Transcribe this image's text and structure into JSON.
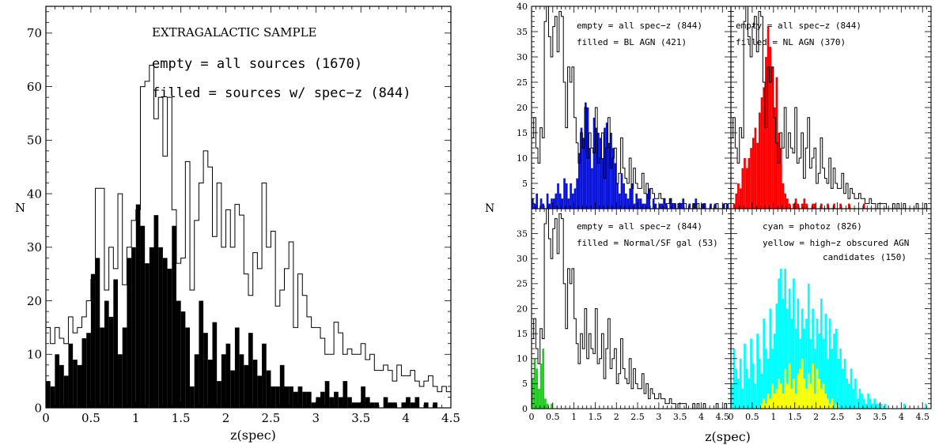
{
  "figure": {
    "left_title": "EXTRAGALACTIC SAMPLE",
    "left_ann_1": "empty = all sources (1670)",
    "left_ann_2": "filled = sources w/ spec−z (844)",
    "left_ylabel": "N",
    "left_xlabel": "z(spec)",
    "right_ylabel": "N",
    "right_xlabel": "z(spec)"
  },
  "panels": [
    {
      "ann_1": "empty = all spec−z (844)",
      "ann_2": "filled = BL AGN (421)",
      "fill_color": "#0a14d8"
    },
    {
      "ann_1": "empty = all spec−z (844)",
      "ann_2": "filled = NL AGN (370)",
      "fill_color": "#ff0000"
    },
    {
      "ann_1": "empty = all spec−z (844)",
      "ann_2": "filled =  Normal/SF gal  (53)",
      "fill_color": "#22cc22"
    },
    {
      "ann_1": "cyan = photoz  (826)",
      "ann_2": "yellow = high−z obscured AGN",
      "ann_3": "candidates (150)",
      "fill_color": "#00ffff",
      "fill2_color": "#ffff00"
    }
  ],
  "chart_data": [
    {
      "type": "bar",
      "title": "EXTRAGALACTIC SAMPLE",
      "xlabel": "z(spec)",
      "ylabel": "N",
      "xlim": [
        0,
        4.5
      ],
      "ylim": [
        0,
        75
      ],
      "x_ticks": [
        "0",
        "0.5",
        "1",
        "1.5",
        "2",
        "2.5",
        "3",
        "3.5",
        "4",
        "4.5"
      ],
      "y_ticks": [
        "0",
        "10",
        "20",
        "30",
        "40",
        "50",
        "60",
        "70"
      ],
      "bin_width": 0.05,
      "series": [
        {
          "name": "all sources (1670)",
          "style": "empty",
          "values": [
            15,
            12,
            15,
            13,
            12,
            17,
            14,
            15,
            17,
            20,
            24,
            41,
            41,
            22,
            30,
            26,
            40,
            23,
            30,
            35,
            37,
            60,
            61,
            64,
            54,
            58,
            47,
            58,
            37,
            27,
            28,
            46,
            22,
            35,
            42,
            48,
            45,
            32,
            42,
            30,
            37,
            30,
            38,
            36,
            25,
            21,
            29,
            26,
            42,
            30,
            33,
            19,
            22,
            26,
            31,
            15,
            25,
            21,
            17,
            15,
            15,
            13,
            10,
            10,
            16,
            14,
            10,
            11,
            10,
            10,
            12,
            9,
            10,
            7,
            7,
            8,
            7,
            5,
            8,
            6,
            6,
            7,
            5,
            4,
            5,
            6,
            4,
            3,
            4,
            3,
            3,
            2,
            2,
            1,
            0,
            1,
            0,
            1,
            0,
            0
          ]
        },
        {
          "name": "sources w/ spec-z (844)",
          "style": "filled",
          "color": "#000000",
          "values": [
            5,
            4,
            10,
            8,
            6,
            12,
            9,
            8,
            13,
            14,
            25,
            28,
            15,
            20,
            17,
            24,
            10,
            15,
            28,
            30,
            38,
            34,
            27,
            30,
            36,
            30,
            28,
            26,
            34,
            20,
            18,
            15,
            4,
            10,
            20,
            14,
            9,
            16,
            5,
            10,
            12,
            7,
            15,
            10,
            8,
            14,
            9,
            6,
            12,
            7,
            4,
            4,
            8,
            4,
            4,
            3,
            4,
            3,
            3,
            1,
            2,
            3,
            5,
            2,
            3,
            2,
            5,
            2,
            1,
            1,
            4,
            2,
            1,
            1,
            0,
            2,
            1,
            1,
            0,
            1,
            2,
            1,
            2,
            0,
            1,
            0,
            1,
            0,
            0,
            0,
            0,
            0,
            0,
            0,
            1,
            0,
            0,
            1,
            0,
            0
          ]
        }
      ]
    },
    {
      "type": "bar",
      "xlim": [
        0,
        4.7
      ],
      "ylim": [
        0,
        40
      ],
      "bin_width": 0.05,
      "y_ticks": [
        "5",
        "10",
        "15",
        "20",
        "25",
        "30",
        "35",
        "40"
      ],
      "series": [
        {
          "name": "all spec-z (844)",
          "style": "empty",
          "values": [
            14,
            18,
            12,
            9,
            16,
            14,
            37,
            40,
            34,
            30,
            36,
            38,
            31,
            39,
            38,
            25,
            16,
            28,
            25,
            28,
            18,
            13,
            9,
            15,
            12,
            20,
            10,
            15,
            12,
            11,
            20,
            9,
            10,
            15,
            6,
            12,
            18,
            8,
            10,
            12,
            5,
            7,
            14,
            8,
            6,
            5,
            10,
            4,
            8,
            5,
            4,
            4,
            7,
            3,
            5,
            2,
            4,
            3,
            2,
            2,
            3,
            2,
            2,
            1,
            1,
            2,
            1,
            1,
            0,
            1,
            1,
            1,
            1,
            0,
            0,
            0,
            1,
            0,
            1,
            0,
            0,
            1,
            0,
            0,
            0,
            0,
            0,
            1,
            0,
            0,
            0,
            1,
            0,
            0
          ]
        },
        {
          "name": "BL AGN (421)",
          "style": "filled",
          "color": "#0a14d8",
          "values": [
            2,
            1,
            3,
            0,
            2,
            1,
            0,
            3,
            1,
            2,
            2,
            3,
            5,
            3,
            2,
            6,
            5,
            2,
            5,
            3,
            4,
            6,
            11,
            16,
            14,
            21,
            20,
            12,
            8,
            18,
            16,
            15,
            14,
            10,
            16,
            17,
            13,
            15,
            12,
            9,
            5,
            3,
            7,
            5,
            3,
            2,
            4,
            5,
            1,
            3,
            2,
            2,
            1,
            1,
            3,
            4,
            0,
            2,
            1,
            0,
            1,
            1,
            2,
            1,
            0,
            2,
            1,
            1,
            0,
            1,
            1,
            2,
            0,
            0,
            1,
            0,
            1,
            2,
            0,
            0,
            1,
            1,
            0,
            0,
            1,
            0,
            1,
            0,
            0,
            0,
            1,
            0,
            1,
            0
          ]
        }
      ]
    },
    {
      "type": "bar",
      "xlim": [
        0,
        4.7
      ],
      "ylim": [
        0,
        40
      ],
      "bin_width": 0.05,
      "y_ticks": [
        "5",
        "10",
        "15",
        "20",
        "25",
        "30",
        "35",
        "40"
      ],
      "series": [
        {
          "name": "all spec-z (844)",
          "style": "empty",
          "values": [
            14,
            18,
            12,
            9,
            16,
            14,
            37,
            40,
            34,
            30,
            36,
            38,
            31,
            39,
            38,
            25,
            16,
            28,
            25,
            28,
            18,
            13,
            9,
            15,
            12,
            20,
            10,
            15,
            12,
            11,
            20,
            9,
            10,
            15,
            6,
            12,
            18,
            8,
            10,
            12,
            5,
            7,
            14,
            8,
            6,
            5,
            10,
            4,
            8,
            5,
            4,
            4,
            7,
            3,
            5,
            2,
            4,
            3,
            2,
            2,
            3,
            2,
            2,
            1,
            1,
            2,
            1,
            1,
            0,
            1,
            1,
            1,
            1,
            0,
            0,
            0,
            1,
            0,
            1,
            0,
            0,
            1,
            0,
            0,
            0,
            0,
            0,
            1,
            0,
            0,
            0,
            1,
            0,
            0
          ]
        },
        {
          "name": "NL AGN (370)",
          "style": "filled",
          "color": "#ff0000",
          "values": [
            0,
            1,
            3,
            5,
            4,
            8,
            10,
            8,
            10,
            12,
            14,
            16,
            13,
            19,
            22,
            24,
            30,
            36,
            32,
            28,
            20,
            26,
            15,
            12,
            5,
            3,
            2,
            1,
            0,
            1,
            2,
            1,
            0,
            1,
            2,
            1,
            0,
            0,
            1,
            1,
            0,
            0,
            1,
            0,
            0,
            1,
            0,
            0,
            1,
            0,
            0,
            1,
            0,
            0,
            0,
            1,
            0,
            0,
            0,
            0,
            0,
            0,
            1,
            0,
            0,
            0,
            0,
            0,
            0,
            0,
            0,
            0,
            0,
            0,
            0,
            0,
            0,
            0,
            0,
            0,
            0,
            0,
            0,
            0,
            0,
            0,
            0,
            0,
            0,
            0,
            0,
            0,
            0,
            0
          ]
        }
      ]
    },
    {
      "type": "bar",
      "xlim": [
        0,
        4.7
      ],
      "ylim": [
        0,
        40
      ],
      "bin_width": 0.05,
      "y_ticks": [
        "0",
        "5",
        "10",
        "15",
        "20",
        "25",
        "30",
        "35"
      ],
      "x_ticks": [
        "0",
        "0.5",
        "1",
        "1.5",
        "2",
        "2.5",
        "3",
        "3.5",
        "4",
        "4.5"
      ],
      "series": [
        {
          "name": "all spec-z (844)",
          "style": "empty",
          "values": [
            14,
            18,
            12,
            9,
            16,
            14,
            37,
            40,
            34,
            30,
            36,
            38,
            31,
            39,
            38,
            25,
            16,
            28,
            25,
            28,
            18,
            13,
            9,
            15,
            12,
            20,
            10,
            15,
            12,
            11,
            20,
            9,
            10,
            15,
            6,
            12,
            18,
            8,
            10,
            12,
            5,
            7,
            14,
            8,
            6,
            5,
            10,
            4,
            8,
            5,
            4,
            4,
            7,
            3,
            5,
            2,
            4,
            3,
            2,
            2,
            3,
            2,
            2,
            1,
            1,
            2,
            1,
            1,
            0,
            1,
            1,
            1,
            1,
            0,
            0,
            0,
            1,
            0,
            1,
            0,
            0,
            1,
            0,
            0,
            0,
            0,
            0,
            1,
            0,
            0,
            0,
            1,
            0,
            0
          ]
        },
        {
          "name": "Normal/SF gal (53)",
          "style": "filled",
          "color": "#22cc22",
          "values": [
            6,
            10,
            8,
            4,
            9,
            12,
            2,
            1,
            0,
            1
          ]
        }
      ]
    },
    {
      "type": "bar",
      "xlim": [
        0,
        4.7
      ],
      "ylim": [
        0,
        40
      ],
      "bin_width": 0.05,
      "y_ticks": [
        "0",
        "5",
        "10",
        "15",
        "20",
        "25",
        "30",
        "35"
      ],
      "x_ticks": [
        "0",
        "0.5",
        "1",
        "1.5",
        "2",
        "2.5",
        "3",
        "3.5",
        "4",
        "4.5"
      ],
      "series": [
        {
          "name": "photoz (826)",
          "style": "filled",
          "color": "#00ffff",
          "values": [
            5,
            12,
            8,
            6,
            10,
            4,
            13,
            8,
            6,
            14,
            9,
            5,
            15,
            10,
            7,
            18,
            12,
            10,
            20,
            12,
            15,
            21,
            26,
            28,
            22,
            28,
            20,
            24,
            18,
            26,
            16,
            22,
            14,
            20,
            16,
            18,
            25,
            14,
            20,
            12,
            18,
            15,
            22,
            14,
            19,
            10,
            18,
            12,
            15,
            16,
            10,
            12,
            8,
            10,
            6,
            5,
            8,
            4,
            6,
            2,
            4,
            3,
            2,
            1,
            3,
            2,
            1,
            2,
            1,
            1,
            1,
            0,
            1,
            0,
            0,
            0,
            0,
            0,
            0,
            0,
            0,
            1,
            0,
            0,
            0,
            0,
            0,
            0,
            0,
            0,
            0,
            1,
            0,
            0
          ]
        },
        {
          "name": "high-z obscured AGN candidates (150)",
          "style": "filled",
          "color": "#ffff00",
          "values": [
            0,
            0,
            0,
            0,
            0,
            0,
            0,
            0,
            0,
            0,
            0,
            0,
            0,
            0,
            1,
            2,
            1,
            3,
            2,
            5,
            3,
            4,
            6,
            5,
            3,
            8,
            5,
            9,
            4,
            6,
            3,
            7,
            8,
            10,
            6,
            4,
            7,
            5,
            9,
            3,
            8,
            6,
            4,
            5,
            3,
            2,
            1,
            2,
            0,
            1,
            0,
            0,
            0,
            0,
            0,
            0,
            0,
            0,
            0,
            0,
            0,
            0,
            0,
            0,
            0,
            0,
            0,
            0,
            0,
            0,
            0,
            0,
            0,
            0,
            0,
            0,
            0,
            0,
            0,
            0,
            0,
            0,
            0,
            0,
            0,
            0,
            0,
            0,
            0,
            0,
            0,
            0,
            0,
            0
          ]
        }
      ]
    }
  ]
}
